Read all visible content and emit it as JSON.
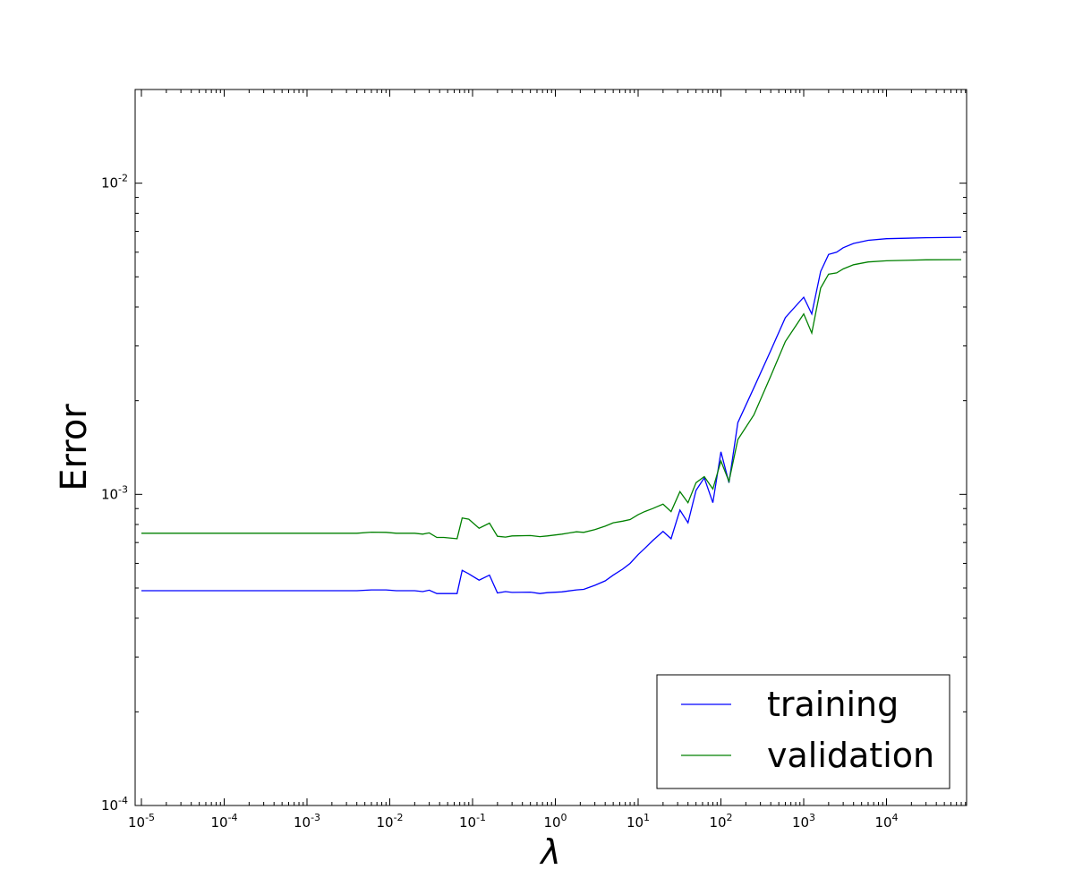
{
  "chart_data": {
    "type": "line",
    "xlabel": "λ",
    "ylabel": "Error",
    "xscale": "log",
    "yscale": "log",
    "xlim": [
      1e-05,
      100000
    ],
    "ylim": [
      0.0001,
      0.02
    ],
    "grid": false,
    "legend_position": "lower-right",
    "x_tick_labels": [
      {
        "base": "10",
        "exp": "-5",
        "value": 1e-05
      },
      {
        "base": "10",
        "exp": "-4",
        "value": 0.0001
      },
      {
        "base": "10",
        "exp": "-3",
        "value": 0.001
      },
      {
        "base": "10",
        "exp": "-2",
        "value": 0.01
      },
      {
        "base": "10",
        "exp": "-1",
        "value": 0.1
      },
      {
        "base": "10",
        "exp": "0",
        "value": 1
      },
      {
        "base": "10",
        "exp": "1",
        "value": 10
      },
      {
        "base": "10",
        "exp": "2",
        "value": 100
      },
      {
        "base": "10",
        "exp": "3",
        "value": 1000
      },
      {
        "base": "10",
        "exp": "4",
        "value": 10000
      }
    ],
    "y_tick_labels": [
      {
        "base": "10",
        "exp": "-4",
        "value": 0.0001
      },
      {
        "base": "10",
        "exp": "-3",
        "value": 0.001
      },
      {
        "base": "10",
        "exp": "-2",
        "value": 0.01
      }
    ],
    "series": [
      {
        "name": "training",
        "color": "#0000ff",
        "points": [
          [
            1e-05,
            0.00049
          ],
          [
            0.0001,
            0.00049
          ],
          [
            0.001,
            0.00049
          ],
          [
            0.004,
            0.00049
          ],
          [
            0.006,
            0.000493
          ],
          [
            0.009,
            0.000493
          ],
          [
            0.012,
            0.00049
          ],
          [
            0.02,
            0.00049
          ],
          [
            0.025,
            0.000487
          ],
          [
            0.03,
            0.000492
          ],
          [
            0.037,
            0.00048
          ],
          [
            0.045,
            0.00048
          ],
          [
            0.065,
            0.00048
          ],
          [
            0.075,
            0.00057
          ],
          [
            0.09,
            0.000555
          ],
          [
            0.12,
            0.00053
          ],
          [
            0.16,
            0.00055
          ],
          [
            0.2,
            0.000482
          ],
          [
            0.25,
            0.000487
          ],
          [
            0.3,
            0.000484
          ],
          [
            0.5,
            0.000485
          ],
          [
            0.65,
            0.00048
          ],
          [
            0.8,
            0.000483
          ],
          [
            1.2,
            0.000486
          ],
          [
            1.8,
            0.000493
          ],
          [
            2.2,
            0.000495
          ],
          [
            3,
            0.00051
          ],
          [
            4,
            0.000527
          ],
          [
            5,
            0.00055
          ],
          [
            6.5,
            0.000575
          ],
          [
            8,
            0.0006
          ],
          [
            10,
            0.00064
          ],
          [
            12,
            0.00067
          ],
          [
            15,
            0.00071
          ],
          [
            20,
            0.00076
          ],
          [
            25,
            0.00072
          ],
          [
            32,
            0.00089
          ],
          [
            40,
            0.00081
          ],
          [
            50,
            0.00103
          ],
          [
            63,
            0.00113
          ],
          [
            80,
            0.00094
          ],
          [
            100,
            0.00137
          ],
          [
            125,
            0.00109
          ],
          [
            160,
            0.0017
          ],
          [
            250,
            0.0022
          ],
          [
            400,
            0.0029
          ],
          [
            600,
            0.0037
          ],
          [
            1000,
            0.0043
          ],
          [
            1250,
            0.0038
          ],
          [
            1600,
            0.0052
          ],
          [
            2000,
            0.0059
          ],
          [
            2500,
            0.006
          ],
          [
            3000,
            0.0062
          ],
          [
            4000,
            0.0064
          ],
          [
            6000,
            0.00655
          ],
          [
            10000,
            0.00663
          ],
          [
            30000,
            0.00668
          ],
          [
            80000,
            0.0067
          ]
        ]
      },
      {
        "name": "validation",
        "color": "#008000",
        "points": [
          [
            1e-05,
            0.00075
          ],
          [
            0.0001,
            0.00075
          ],
          [
            0.001,
            0.00075
          ],
          [
            0.004,
            0.00075
          ],
          [
            0.006,
            0.000756
          ],
          [
            0.009,
            0.000755
          ],
          [
            0.012,
            0.00075
          ],
          [
            0.02,
            0.00075
          ],
          [
            0.025,
            0.000745
          ],
          [
            0.03,
            0.000752
          ],
          [
            0.037,
            0.000727
          ],
          [
            0.045,
            0.000727
          ],
          [
            0.065,
            0.00072
          ],
          [
            0.075,
            0.00084
          ],
          [
            0.09,
            0.000832
          ],
          [
            0.12,
            0.000778
          ],
          [
            0.16,
            0.000808
          ],
          [
            0.2,
            0.000733
          ],
          [
            0.25,
            0.000729
          ],
          [
            0.3,
            0.000735
          ],
          [
            0.5,
            0.000737
          ],
          [
            0.65,
            0.000731
          ],
          [
            0.8,
            0.000735
          ],
          [
            1.2,
            0.000745
          ],
          [
            1.8,
            0.000758
          ],
          [
            2.2,
            0.000755
          ],
          [
            3,
            0.00077
          ],
          [
            4,
            0.00079
          ],
          [
            5,
            0.00081
          ],
          [
            6.5,
            0.00082
          ],
          [
            8,
            0.00083
          ],
          [
            10,
            0.00086
          ],
          [
            12,
            0.00088
          ],
          [
            15,
            0.0009
          ],
          [
            20,
            0.00093
          ],
          [
            25,
            0.00088
          ],
          [
            32,
            0.00102
          ],
          [
            40,
            0.00094
          ],
          [
            50,
            0.00109
          ],
          [
            63,
            0.00114
          ],
          [
            80,
            0.00104
          ],
          [
            100,
            0.00128
          ],
          [
            125,
            0.0011
          ],
          [
            160,
            0.0015
          ],
          [
            250,
            0.0018
          ],
          [
            400,
            0.0024
          ],
          [
            600,
            0.0031
          ],
          [
            1000,
            0.0038
          ],
          [
            1250,
            0.0033
          ],
          [
            1600,
            0.0046
          ],
          [
            2000,
            0.0051
          ],
          [
            2500,
            0.00515
          ],
          [
            3000,
            0.0053
          ],
          [
            4000,
            0.00547
          ],
          [
            6000,
            0.00558
          ],
          [
            10000,
            0.00563
          ],
          [
            30000,
            0.00567
          ],
          [
            80000,
            0.00568
          ]
        ]
      }
    ]
  }
}
